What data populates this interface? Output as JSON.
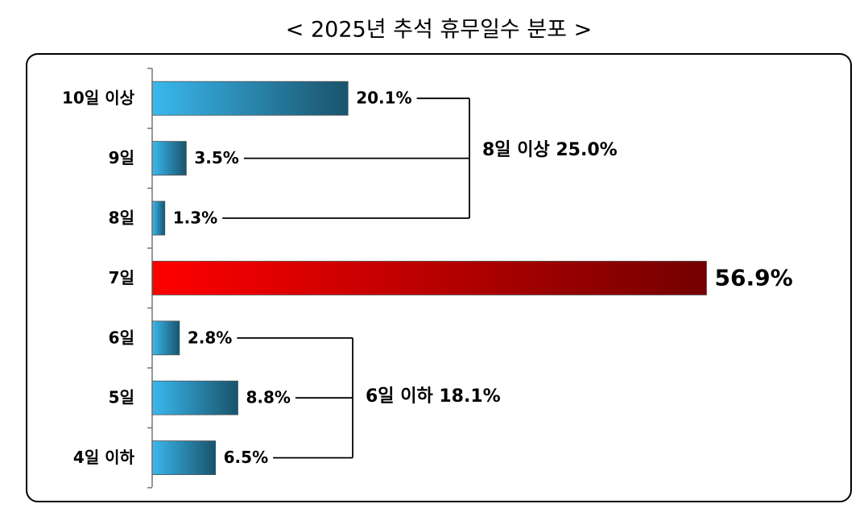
{
  "chart_data": {
    "type": "hbar",
    "title": "< 2025년 추석 휴무일수 분포 >",
    "categories": [
      "10일 이상",
      "9일",
      "8일",
      "7일",
      "6일",
      "5일",
      "4일 이하"
    ],
    "values": [
      20.1,
      3.5,
      1.3,
      56.9,
      2.8,
      8.8,
      6.5
    ],
    "value_labels": [
      "20.1%",
      "3.5%",
      "1.3%",
      "56.9%",
      "2.8%",
      "8.8%",
      "6.5%"
    ],
    "colors": [
      "#3ab8ee",
      "#3ab8ee",
      "#3ab8ee",
      "#ff0000",
      "#3ab8ee",
      "#3ab8ee",
      "#3ab8ee"
    ],
    "value_label_colors": [
      "#000000",
      "#000000",
      "#000000",
      "#e52b2b",
      "#000000",
      "#000000",
      "#000000"
    ],
    "annotations": [
      "8일 이상 25.0%",
      "6일 이하 18.1%"
    ]
  }
}
